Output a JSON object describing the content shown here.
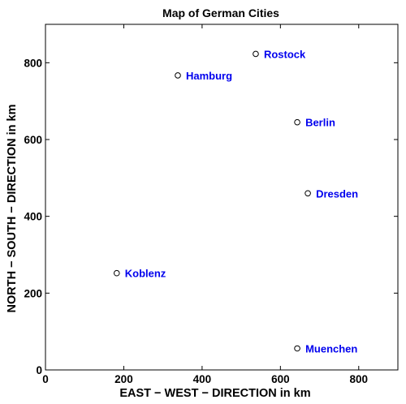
{
  "chart_data": {
    "type": "scatter",
    "title": "Map of German Cities",
    "xlabel": "EAST − WEST − DIRECTION in km",
    "ylabel": "NORTH − SOUTH − DIRECTION in km",
    "xlim": [
      0,
      900
    ],
    "ylim": [
      0,
      900
    ],
    "xticks": [
      "0",
      "200",
      "400",
      "600",
      "800"
    ],
    "yticks": [
      "0",
      "200",
      "400",
      "600",
      "800"
    ],
    "grid": false,
    "marker": "open-circle",
    "label_color": "#0000ee",
    "marker_color": "#000000",
    "points": [
      {
        "label": "Rostock",
        "x": 537,
        "y": 823
      },
      {
        "label": "Hamburg",
        "x": 338,
        "y": 767
      },
      {
        "label": "Berlin",
        "x": 643,
        "y": 645
      },
      {
        "label": "Dresden",
        "x": 670,
        "y": 460
      },
      {
        "label": "Koblenz",
        "x": 182,
        "y": 252
      },
      {
        "label": "Muenchen",
        "x": 643,
        "y": 56
      }
    ]
  }
}
